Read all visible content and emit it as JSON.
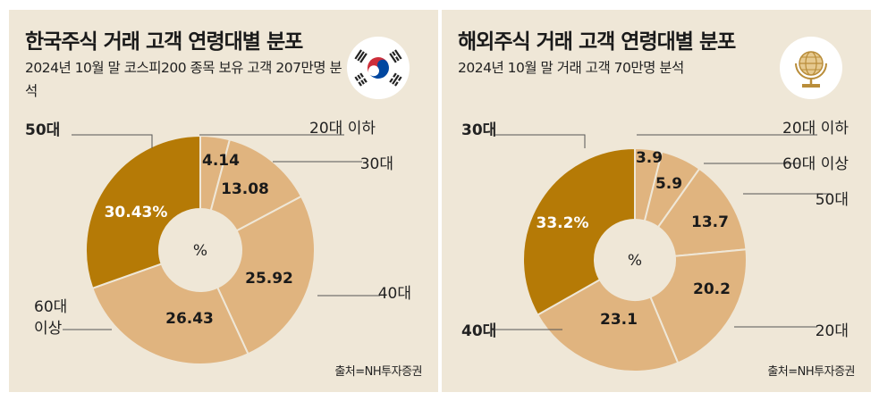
{
  "colors": {
    "panel_bg": "#efe7d7",
    "dark_slice": "#b57a06",
    "light_slice": "#e0b47f",
    "separator": "#efe7d7"
  },
  "panels": [
    {
      "title": "한국주식 거래 고객 연령대별 분포",
      "subtitle": "2024년 10월 말 코스피200 종목 보유 고객 207만명 분석",
      "source": "출처=NH투자증권",
      "emblem_icon": "korean-flag-icon"
    },
    {
      "title": "해외주식 거래 고객 연령대별 분포",
      "subtitle": "2024년 10월 말 거래 고객 70만명 분석",
      "source": "출처=NH투자증권",
      "emblem_icon": "globe-icon"
    }
  ],
  "chart_data": [
    {
      "type": "pie",
      "center_label": "%",
      "slices": [
        {
          "category": "20대 이하",
          "value": 4.14,
          "label": "4.14",
          "highlight": false
        },
        {
          "category": "30대",
          "value": 13.08,
          "label": "13.08",
          "highlight": false
        },
        {
          "category": "40대",
          "value": 25.92,
          "label": "25.92",
          "highlight": false
        },
        {
          "category": "60대 이상",
          "value": 26.43,
          "label": "26.43",
          "highlight": false
        },
        {
          "category": "50대",
          "value": 30.43,
          "label": "30.43%",
          "highlight": true
        }
      ]
    },
    {
      "type": "pie",
      "center_label": "%",
      "slices": [
        {
          "category": "20대 이하",
          "value": 3.9,
          "label": "3.9",
          "highlight": false
        },
        {
          "category": "60대 이상",
          "value": 5.9,
          "label": "5.9",
          "highlight": false
        },
        {
          "category": "50대",
          "value": 13.7,
          "label": "13.7",
          "highlight": false
        },
        {
          "category": "20대",
          "value": 20.2,
          "label": "20.2",
          "highlight": false
        },
        {
          "category": "40대",
          "value": 23.1,
          "label": "23.1",
          "highlight": false
        },
        {
          "category": "30대",
          "value": 33.2,
          "label": "33.2%",
          "highlight": true
        }
      ]
    }
  ]
}
